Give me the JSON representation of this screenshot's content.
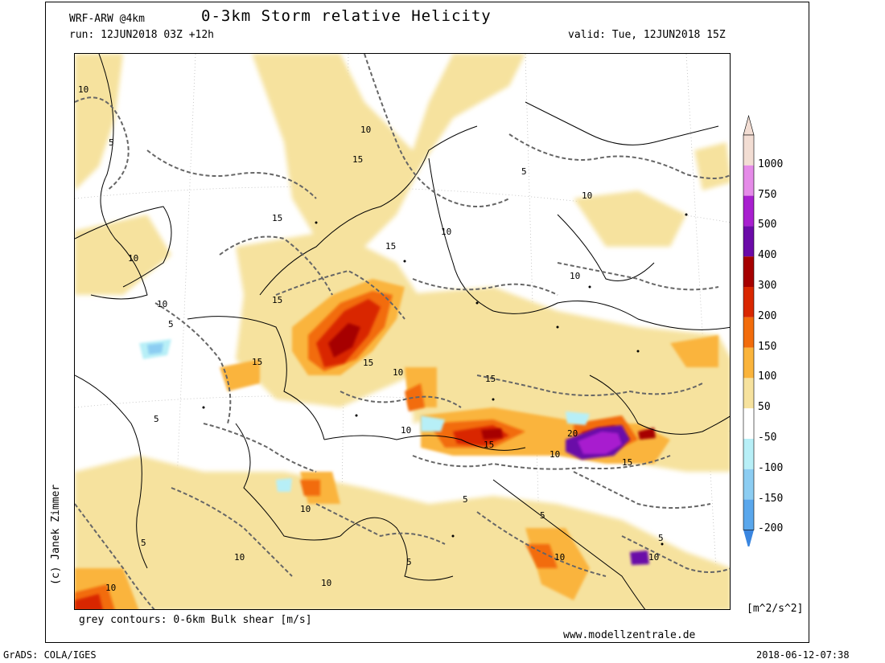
{
  "header": {
    "model": "WRF-ARW @4km",
    "title": "0-3km Storm relative Helicity",
    "run": "run: 12JUN2018 03Z +12h",
    "valid": "valid: Tue, 12JUN2018 15Z"
  },
  "footer": {
    "contour_note": "grey contours: 0-6km Bulk shear [m/s]",
    "website": "www.modellzentrale.de",
    "software": "GrADS: COLA/IGES",
    "timestamp": "2018-06-12-07:38",
    "copyright": "(c) Janek Zimmer"
  },
  "colorbar": {
    "unit": "[m^2/s^2]",
    "levels": [
      {
        "label": "1000",
        "color": "#f2ddd3"
      },
      {
        "label": "750",
        "color": "#e58be8"
      },
      {
        "label": "500",
        "color": "#a81fcf"
      },
      {
        "label": "400",
        "color": "#6b0aa8"
      },
      {
        "label": "300",
        "color": "#a60000"
      },
      {
        "label": "200",
        "color": "#d92700"
      },
      {
        "label": "150",
        "color": "#f26c0c"
      },
      {
        "label": "100",
        "color": "#fab43c"
      },
      {
        "label": "50",
        "color": "#f6e29e"
      },
      {
        "label": "-50",
        "color": "#ffffff"
      },
      {
        "label": "-100",
        "color": "#b7eff7"
      },
      {
        "label": "-150",
        "color": "#8ccdf2"
      },
      {
        "label": "-200",
        "color": "#5aa7ec"
      }
    ],
    "bottom_color": "#3a86e0"
  },
  "contour_labels": [
    {
      "text": "10"
    },
    {
      "text": "5"
    },
    {
      "text": "10"
    },
    {
      "text": "10"
    },
    {
      "text": "15"
    },
    {
      "text": "15"
    },
    {
      "text": "15"
    },
    {
      "text": "10"
    },
    {
      "text": "5"
    },
    {
      "text": "10"
    },
    {
      "text": "15"
    },
    {
      "text": "10"
    },
    {
      "text": "5"
    },
    {
      "text": "10"
    },
    {
      "text": "15"
    },
    {
      "text": "15"
    },
    {
      "text": "10"
    },
    {
      "text": "15"
    },
    {
      "text": "5"
    },
    {
      "text": "10"
    },
    {
      "text": "20"
    },
    {
      "text": "10"
    },
    {
      "text": "15"
    },
    {
      "text": "15"
    },
    {
      "text": "5"
    },
    {
      "text": "10"
    },
    {
      "text": "10"
    },
    {
      "text": "5"
    },
    {
      "text": "10"
    },
    {
      "text": "5"
    },
    {
      "text": "10"
    },
    {
      "text": "5"
    },
    {
      "text": "10"
    },
    {
      "text": "5"
    },
    {
      "text": "10"
    }
  ]
}
